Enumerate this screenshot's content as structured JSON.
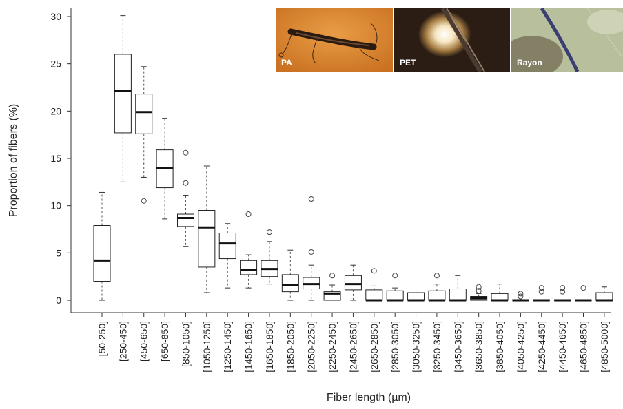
{
  "chart_data": {
    "type": "box",
    "xlabel": "Fiber length (µm)",
    "ylabel": "Proportion of fibers (%)",
    "ylim": [
      0,
      31
    ],
    "yticks": [
      0,
      5,
      10,
      15,
      20,
      25,
      30
    ],
    "grid": false,
    "categories": [
      "[50-250]",
      "[250-450]",
      "[450-650]",
      "[650-850]",
      "[850-1050]",
      "[1050-1250]",
      "[1250-1450]",
      "[1450-1650]",
      "[1650-1850]",
      "[1850-2050]",
      "[2050-2250]",
      "[2250-2450]",
      "[2450-2650]",
      "[2650-2850]",
      "[2850-3050]",
      "[3050-3250]",
      "[3250-3450]",
      "[3450-3650]",
      "[3650-3850]",
      "[3850-4050]",
      "[4050-4250]",
      "[4250-4450]",
      "[4450-4650]",
      "[4650-4850]",
      "[4850-5000]"
    ],
    "boxes": [
      {
        "min": 0.0,
        "q1": 2.0,
        "median": 4.2,
        "q3": 7.9,
        "max": 11.4,
        "outliers": []
      },
      {
        "min": 12.5,
        "q1": 17.7,
        "median": 22.1,
        "q3": 26.0,
        "max": 30.1,
        "outliers": []
      },
      {
        "min": 13.0,
        "q1": 17.6,
        "median": 19.9,
        "q3": 21.8,
        "max": 24.7,
        "outliers": [
          10.5
        ]
      },
      {
        "min": 8.6,
        "q1": 11.9,
        "median": 14.0,
        "q3": 15.9,
        "max": 19.2,
        "outliers": []
      },
      {
        "min": 5.7,
        "q1": 7.8,
        "median": 8.7,
        "q3": 9.1,
        "max": 11.1,
        "outliers": [
          12.4,
          15.6
        ]
      },
      {
        "min": 0.8,
        "q1": 3.5,
        "median": 7.7,
        "q3": 9.5,
        "max": 14.2,
        "outliers": []
      },
      {
        "min": 1.3,
        "q1": 4.4,
        "median": 6.0,
        "q3": 7.1,
        "max": 8.1,
        "outliers": []
      },
      {
        "min": 1.3,
        "q1": 2.7,
        "median": 3.2,
        "q3": 4.2,
        "max": 4.8,
        "outliers": [
          9.1
        ]
      },
      {
        "min": 1.7,
        "q1": 2.5,
        "median": 3.3,
        "q3": 4.2,
        "max": 6.2,
        "outliers": [
          7.2
        ]
      },
      {
        "min": 0.0,
        "q1": 0.9,
        "median": 1.6,
        "q3": 2.7,
        "max": 5.3,
        "outliers": []
      },
      {
        "min": 0.0,
        "q1": 1.2,
        "median": 1.7,
        "q3": 2.4,
        "max": 3.7,
        "outliers": [
          5.1,
          10.7
        ]
      },
      {
        "min": 0.0,
        "q1": 0.0,
        "median": 0.7,
        "q3": 0.9,
        "max": 1.6,
        "outliers": [
          2.6
        ]
      },
      {
        "min": 0.0,
        "q1": 1.1,
        "median": 1.7,
        "q3": 2.6,
        "max": 3.7,
        "outliers": []
      },
      {
        "min": 0.0,
        "q1": 0.0,
        "median": 0.0,
        "q3": 1.1,
        "max": 1.5,
        "outliers": [
          3.1
        ]
      },
      {
        "min": 0.0,
        "q1": 0.0,
        "median": 0.0,
        "q3": 1.0,
        "max": 1.3,
        "outliers": [
          2.6
        ]
      },
      {
        "min": 0.0,
        "q1": 0.0,
        "median": 0.0,
        "q3": 0.8,
        "max": 1.2,
        "outliers": []
      },
      {
        "min": 0.0,
        "q1": 0.0,
        "median": 0.0,
        "q3": 1.0,
        "max": 1.7,
        "outliers": [
          2.6
        ]
      },
      {
        "min": 0.0,
        "q1": 0.0,
        "median": 0.0,
        "q3": 1.2,
        "max": 2.6,
        "outliers": []
      },
      {
        "min": 0.0,
        "q1": 0.0,
        "median": 0.2,
        "q3": 0.4,
        "max": 0.7,
        "outliers": [
          1.0,
          1.4
        ]
      },
      {
        "min": 0.0,
        "q1": 0.0,
        "median": 0.0,
        "q3": 0.7,
        "max": 1.7,
        "outliers": []
      },
      {
        "min": 0.0,
        "q1": 0.0,
        "median": 0.0,
        "q3": 0.0,
        "max": 0.0,
        "outliers": [
          0.4,
          0.7
        ]
      },
      {
        "min": 0.0,
        "q1": 0.0,
        "median": 0.0,
        "q3": 0.0,
        "max": 0.0,
        "outliers": [
          0.9,
          1.3
        ]
      },
      {
        "min": 0.0,
        "q1": 0.0,
        "median": 0.0,
        "q3": 0.0,
        "max": 0.0,
        "outliers": [
          0.9,
          1.3
        ]
      },
      {
        "min": 0.0,
        "q1": 0.0,
        "median": 0.0,
        "q3": 0.0,
        "max": 0.0,
        "outliers": [
          1.3
        ]
      },
      {
        "min": 0.0,
        "q1": 0.0,
        "median": 0.0,
        "q3": 0.8,
        "max": 1.4,
        "outliers": []
      }
    ]
  },
  "photos": [
    {
      "label": "PA",
      "bg": "#d8852f"
    },
    {
      "label": "PET",
      "bg": "#2b1d14"
    },
    {
      "label": "Rayon",
      "bg": "#b8bf9c"
    }
  ]
}
